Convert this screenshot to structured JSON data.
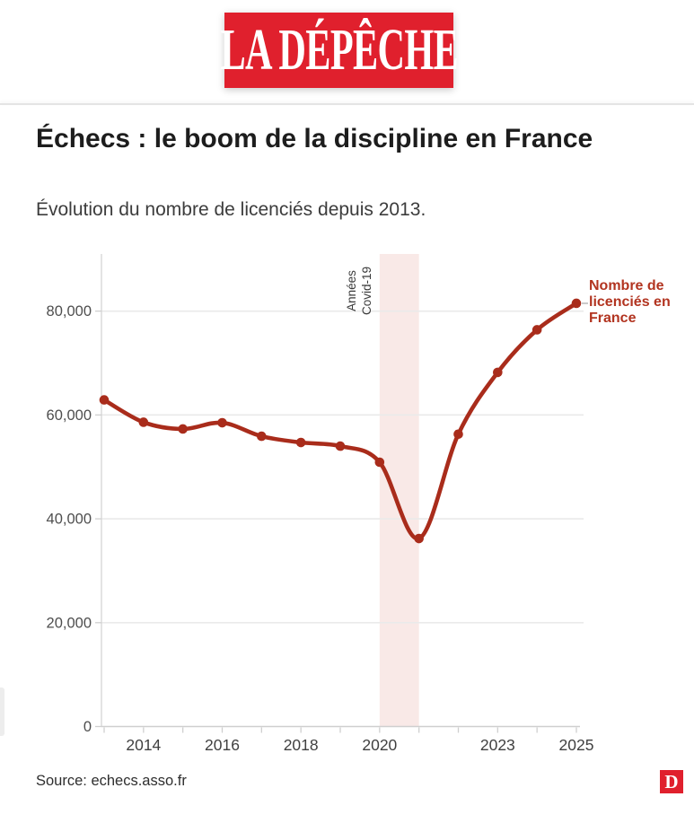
{
  "brand": {
    "logo_text": "LA DÉPÊCHE",
    "footer_logo_letter": "D"
  },
  "colors": {
    "brand_red": "#e0202d",
    "line_red": "#a92c1b",
    "annotation_red": "#b23420",
    "band_pink": "#f9e9e7"
  },
  "footer": {
    "source": "Source: echecs.asso.fr"
  },
  "chart_data": {
    "type": "line",
    "title": "Échecs : le boom de la discipline en France",
    "subtitle": "Évolution du nombre de licenciés depuis 2013.",
    "xlabel": "",
    "ylabel": "",
    "x": [
      2013,
      2014,
      2015,
      2016,
      2017,
      2018,
      2019,
      2020,
      2021,
      2022,
      2023,
      2024,
      2025
    ],
    "values": [
      62900,
      58600,
      57300,
      58500,
      55900,
      54700,
      54000,
      50900,
      36200,
      56300,
      68200,
      76400,
      81500
    ],
    "series_label": "Nombre de licenciés en France",
    "series_label_lines": [
      "Nombre de",
      "licenciés en",
      "France"
    ],
    "band": {
      "from": 2020,
      "to": 2021,
      "label": "Années Covid-19",
      "label_lines": [
        "Années",
        "Covid-19"
      ],
      "color": "#f9e9e7"
    },
    "y_ticks": [
      0,
      20000,
      40000,
      60000,
      80000
    ],
    "x_tick_labels": [
      2014,
      2016,
      2018,
      2020,
      2023,
      2025
    ],
    "ylim": [
      0,
      91000
    ],
    "xlim": [
      2013,
      2025
    ],
    "grid": "horizontal",
    "legend_position": "right-annotation",
    "line_color": "#a92c1b",
    "label_color": "#b23420"
  }
}
